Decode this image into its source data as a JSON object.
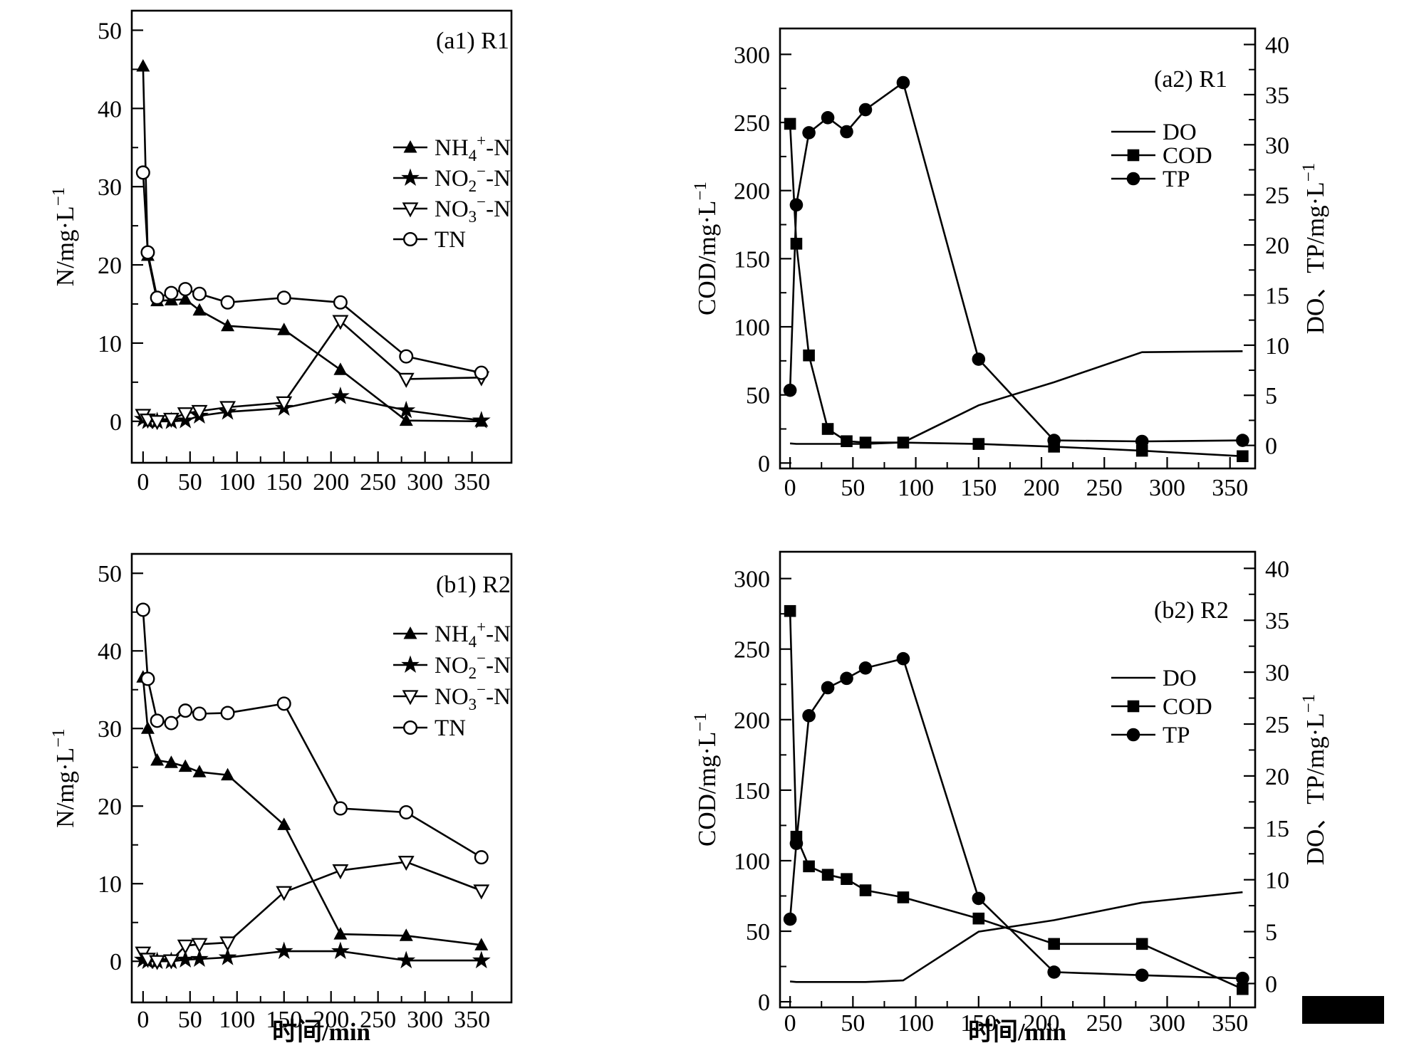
{
  "figure": {
    "background": "#ffffff",
    "ink": "#000000",
    "description": "Four-panel line figure: nitrogen species and COD/DO/TP profiles during one cycle in reactors R1 and R2"
  },
  "artifacts": {
    "black_bar_color": "#000000"
  },
  "chart_data": [
    {
      "id": "a1",
      "title": "(a1) R1",
      "type": "line",
      "x": {
        "label": "",
        "values": [
          0,
          5,
          15,
          30,
          45,
          60,
          90,
          150,
          210,
          280,
          360
        ],
        "ticks": [
          0,
          50,
          100,
          150,
          200,
          250,
          300,
          350
        ],
        "range": [
          -12,
          392
        ]
      },
      "y_left": {
        "label": "N/mg·L",
        "label_sup": "−1",
        "ticks": [
          0,
          10,
          20,
          30,
          40,
          50
        ],
        "range": [
          -5.3,
          52.5
        ]
      },
      "series": [
        {
          "name": "NH4+-N",
          "label_parts": {
            "pre": "NH",
            "sub": "4",
            "sup": "+",
            "suf": "-N"
          },
          "marker": "filled-triangle-up",
          "axis": "left",
          "values": [
            45.4,
            21.2,
            15.4,
            15.5,
            15.6,
            14.2,
            12.2,
            11.7,
            6.6,
            0.1,
            0.0
          ]
        },
        {
          "name": "NO2--N",
          "label_parts": {
            "pre": "NO",
            "sub": "2",
            "sup": "−",
            "suf": "-N"
          },
          "marker": "filled-star",
          "axis": "left",
          "values": [
            0.3,
            0.0,
            0.0,
            0.0,
            0.1,
            0.7,
            1.2,
            1.7,
            3.2,
            1.4,
            0.1
          ]
        },
        {
          "name": "NO3--N",
          "label_parts": {
            "pre": "NO",
            "sub": "3",
            "sup": "−",
            "suf": "-N"
          },
          "marker": "open-triangle-down",
          "axis": "left",
          "values": [
            0.8,
            0.2,
            0.0,
            0.3,
            1.0,
            1.3,
            1.8,
            2.4,
            12.8,
            5.4,
            5.6
          ]
        },
        {
          "name": "TN",
          "label_parts": {
            "pre": "TN"
          },
          "marker": "open-circle",
          "axis": "left",
          "values": [
            31.8,
            21.6,
            15.8,
            16.4,
            16.9,
            16.3,
            15.2,
            15.8,
            15.2,
            8.3,
            6.2
          ]
        }
      ],
      "legend": {
        "entries": [
          "NH4+-N",
          "NO2--N",
          "NO3--N",
          "TN"
        ],
        "position": "center-right"
      }
    },
    {
      "id": "a2",
      "title": "(a2) R1",
      "type": "line",
      "x": {
        "label": "",
        "values": [
          0,
          5,
          15,
          30,
          45,
          60,
          90,
          150,
          210,
          280,
          360
        ],
        "ticks": [
          0,
          50,
          100,
          150,
          200,
          250,
          300,
          350
        ],
        "range": [
          -8,
          370
        ]
      },
      "y_left": {
        "label": "COD/mg·L",
        "label_sup": "−1",
        "ticks": [
          0,
          50,
          100,
          150,
          200,
          250,
          300
        ],
        "range": [
          -4,
          319
        ]
      },
      "y_right": {
        "label": "DO、TP/mg·L",
        "label_sup": "−1",
        "ticks": [
          0,
          5,
          10,
          15,
          20,
          25,
          30,
          35,
          40
        ],
        "range": [
          -2.3,
          41.6
        ]
      },
      "series": [
        {
          "name": "DO",
          "label_parts": {
            "pre": "DO"
          },
          "marker": "none",
          "axis": "right",
          "values": [
            0.2,
            0.15,
            0.15,
            0.15,
            0.15,
            0.15,
            0.3,
            4.0,
            6.3,
            9.3,
            9.4
          ]
        },
        {
          "name": "COD",
          "label_parts": {
            "pre": "COD"
          },
          "marker": "filled-square",
          "axis": "left",
          "values": [
            249,
            161,
            79,
            25,
            16,
            15,
            15,
            14,
            12,
            9,
            5
          ]
        },
        {
          "name": "TP",
          "label_parts": {
            "pre": "TP"
          },
          "marker": "filled-circle",
          "axis": "right",
          "values": [
            5.5,
            24.0,
            31.2,
            32.7,
            31.3,
            33.5,
            36.2,
            8.6,
            0.5,
            0.4,
            0.5
          ]
        }
      ],
      "legend": {
        "entries": [
          "DO",
          "COD",
          "TP"
        ],
        "position": "upper-right"
      }
    },
    {
      "id": "b1",
      "title": "(b1) R2",
      "type": "line",
      "x": {
        "label": "时间/min",
        "values": [
          0,
          5,
          15,
          30,
          45,
          60,
          90,
          150,
          210,
          280,
          360
        ],
        "ticks": [
          0,
          50,
          100,
          150,
          200,
          250,
          300,
          350
        ],
        "range": [
          -12,
          392
        ]
      },
      "y_left": {
        "label": "N/mg·L",
        "label_sup": "−1",
        "ticks": [
          0,
          10,
          20,
          30,
          40,
          50
        ],
        "range": [
          -5.3,
          52.5
        ]
      },
      "series": [
        {
          "name": "NH4+-N",
          "label_parts": {
            "pre": "NH",
            "sub": "4",
            "sup": "+",
            "suf": "-N"
          },
          "marker": "filled-triangle-up",
          "axis": "left",
          "values": [
            36.6,
            30.0,
            25.9,
            25.6,
            25.1,
            24.4,
            24.0,
            17.6,
            3.5,
            3.3,
            2.1
          ]
        },
        {
          "name": "NO2--N",
          "label_parts": {
            "pre": "NO",
            "sub": "2",
            "sup": "−",
            "suf": "-N"
          },
          "marker": "filled-star",
          "axis": "left",
          "values": [
            0.2,
            0.0,
            0.0,
            0.0,
            0.2,
            0.3,
            0.5,
            1.3,
            1.3,
            0.1,
            0.1
          ]
        },
        {
          "name": "NO3--N",
          "label_parts": {
            "pre": "NO",
            "sub": "3",
            "sup": "−",
            "suf": "-N"
          },
          "marker": "open-triangle-down",
          "axis": "left",
          "values": [
            1.1,
            0.3,
            0.0,
            0.1,
            2.0,
            2.2,
            2.4,
            8.9,
            11.7,
            12.8,
            9.1
          ]
        },
        {
          "name": "TN",
          "label_parts": {
            "pre": "TN"
          },
          "marker": "open-circle",
          "axis": "left",
          "values": [
            45.3,
            36.4,
            31.0,
            30.7,
            32.3,
            31.9,
            32.0,
            33.2,
            19.7,
            19.2,
            13.4
          ]
        }
      ],
      "legend": {
        "entries": [
          "NH4+-N",
          "NO2--N",
          "NO3--N",
          "TN"
        ],
        "position": "center-right"
      }
    },
    {
      "id": "b2",
      "title": "(b2) R2",
      "type": "line",
      "x": {
        "label": "时间/min",
        "values": [
          0,
          5,
          15,
          30,
          45,
          60,
          90,
          150,
          210,
          280,
          360
        ],
        "ticks": [
          0,
          50,
          100,
          150,
          200,
          250,
          300,
          350
        ],
        "range": [
          -8,
          370
        ]
      },
      "y_left": {
        "label": "COD/mg·L",
        "label_sup": "−1",
        "ticks": [
          0,
          50,
          100,
          150,
          200,
          250,
          300
        ],
        "range": [
          -4,
          319
        ]
      },
      "y_right": {
        "label": "DO、TP/mg·L",
        "label_sup": "−1",
        "ticks": [
          0,
          5,
          10,
          15,
          20,
          25,
          30,
          35,
          40
        ],
        "range": [
          -2.3,
          41.6
        ]
      },
      "series": [
        {
          "name": "DO",
          "label_parts": {
            "pre": "DO"
          },
          "marker": "none",
          "axis": "right",
          "values": [
            0.2,
            0.15,
            0.15,
            0.15,
            0.15,
            0.15,
            0.3,
            5.0,
            6.1,
            7.8,
            8.8
          ]
        },
        {
          "name": "COD",
          "label_parts": {
            "pre": "COD"
          },
          "marker": "filled-square",
          "axis": "left",
          "values": [
            277,
            117,
            96,
            90,
            87,
            79,
            74,
            59,
            41,
            41,
            9
          ]
        },
        {
          "name": "TP",
          "label_parts": {
            "pre": "TP"
          },
          "marker": "filled-circle",
          "axis": "right",
          "values": [
            6.2,
            13.5,
            25.8,
            28.5,
            29.4,
            30.4,
            31.3,
            8.2,
            1.1,
            0.8,
            0.5
          ]
        }
      ],
      "legend": {
        "entries": [
          "DO",
          "COD",
          "TP"
        ],
        "position": "center-right"
      }
    }
  ]
}
